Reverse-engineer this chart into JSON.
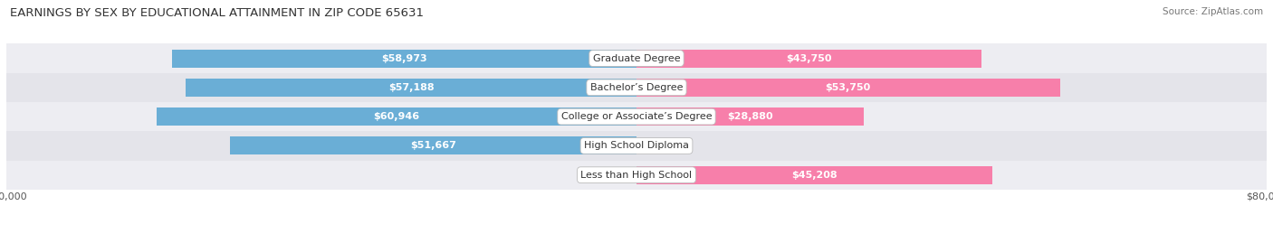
{
  "title": "EARNINGS BY SEX BY EDUCATIONAL ATTAINMENT IN ZIP CODE 65631",
  "source": "Source: ZipAtlas.com",
  "categories": [
    "Less than High School",
    "High School Diploma",
    "College or Associate’s Degree",
    "Bachelor’s Degree",
    "Graduate Degree"
  ],
  "male_values": [
    0,
    51667,
    60946,
    57188,
    58973
  ],
  "female_values": [
    45208,
    0,
    28880,
    53750,
    43750
  ],
  "male_color": "#6aaed6",
  "female_color": "#f77faa",
  "label_color_white": "#ffffff",
  "label_color_dark": "#555555",
  "axis_max": 80000,
  "bar_height": 0.62,
  "background_color": "#ffffff",
  "row_colors": [
    "#ededf2",
    "#e4e4ea"
  ],
  "title_fontsize": 9.5,
  "label_fontsize": 8,
  "tick_fontsize": 8,
  "legend_fontsize": 8.5,
  "source_fontsize": 7.5
}
